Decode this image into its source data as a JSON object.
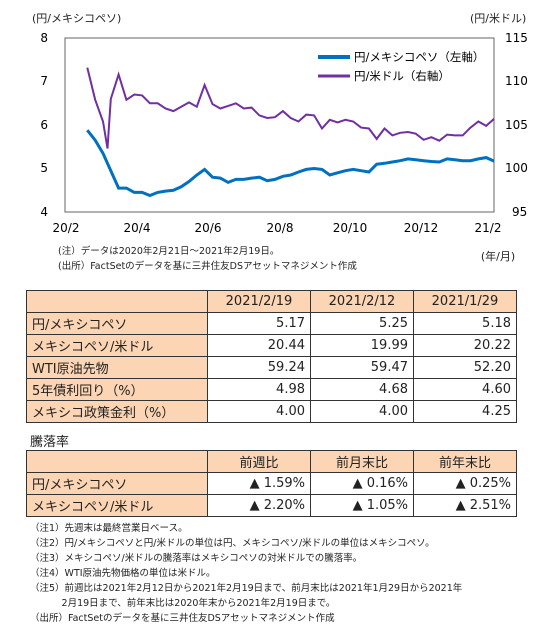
{
  "chart_data": {
    "type": "line",
    "left_axis_unit": "(円/メキシコペソ)",
    "right_axis_unit": "(円/米ドル)",
    "x_unit": "(年/月)",
    "x_ticks": [
      "20/2",
      "20/4",
      "20/6",
      "20/8",
      "20/10",
      "20/12",
      "21/2"
    ],
    "y_left_ticks": [
      "4",
      "5",
      "6",
      "7",
      "8"
    ],
    "y_right_ticks": [
      "95",
      "100",
      "105",
      "110",
      "115"
    ],
    "ylim_left": [
      4,
      8
    ],
    "ylim_right": [
      95,
      115
    ],
    "legend_position": "top-right",
    "series": [
      {
        "name": "円/メキシコペソ（左軸）",
        "axis": "left",
        "color": "#0070c0",
        "points": [
          [
            "2020-02-21",
            5.88
          ],
          [
            "2020-02-28",
            5.65
          ],
          [
            "2020-03-06",
            5.35
          ],
          [
            "2020-03-13",
            4.95
          ],
          [
            "2020-03-20",
            4.55
          ],
          [
            "2020-03-27",
            4.55
          ],
          [
            "2020-04-03",
            4.45
          ],
          [
            "2020-04-10",
            4.45
          ],
          [
            "2020-04-17",
            4.38
          ],
          [
            "2020-04-24",
            4.45
          ],
          [
            "2020-05-01",
            4.48
          ],
          [
            "2020-05-08",
            4.5
          ],
          [
            "2020-05-15",
            4.58
          ],
          [
            "2020-05-22",
            4.7
          ],
          [
            "2020-05-29",
            4.85
          ],
          [
            "2020-06-05",
            4.98
          ],
          [
            "2020-06-12",
            4.8
          ],
          [
            "2020-06-19",
            4.78
          ],
          [
            "2020-06-26",
            4.68
          ],
          [
            "2020-07-03",
            4.75
          ],
          [
            "2020-07-10",
            4.75
          ],
          [
            "2020-07-17",
            4.78
          ],
          [
            "2020-07-24",
            4.8
          ],
          [
            "2020-07-31",
            4.72
          ],
          [
            "2020-08-07",
            4.75
          ],
          [
            "2020-08-14",
            4.82
          ],
          [
            "2020-08-21",
            4.85
          ],
          [
            "2020-08-28",
            4.92
          ],
          [
            "2020-09-04",
            4.98
          ],
          [
            "2020-09-11",
            5.0
          ],
          [
            "2020-09-18",
            4.98
          ],
          [
            "2020-09-25",
            4.85
          ],
          [
            "2020-10-02",
            4.9
          ],
          [
            "2020-10-09",
            4.95
          ],
          [
            "2020-10-16",
            4.98
          ],
          [
            "2020-10-23",
            4.95
          ],
          [
            "2020-10-30",
            4.92
          ],
          [
            "2020-11-06",
            5.1
          ],
          [
            "2020-11-13",
            5.12
          ],
          [
            "2020-11-20",
            5.15
          ],
          [
            "2020-11-27",
            5.18
          ],
          [
            "2020-12-04",
            5.22
          ],
          [
            "2020-12-11",
            5.2
          ],
          [
            "2020-12-18",
            5.18
          ],
          [
            "2020-12-25",
            5.16
          ],
          [
            "2021-01-01",
            5.15
          ],
          [
            "2021-01-08",
            5.22
          ],
          [
            "2021-01-15",
            5.2
          ],
          [
            "2021-01-22",
            5.18
          ],
          [
            "2021-01-29",
            5.18
          ],
          [
            "2021-02-05",
            5.22
          ],
          [
            "2021-02-12",
            5.25
          ],
          [
            "2021-02-19",
            5.17
          ]
        ]
      },
      {
        "name": "円/米ドル（右軸）",
        "axis": "right",
        "color": "#7030a0",
        "points": [
          [
            "2020-02-21",
            111.6
          ],
          [
            "2020-02-28",
            107.9
          ],
          [
            "2020-03-06",
            105.4
          ],
          [
            "2020-03-10",
            102.3
          ],
          [
            "2020-03-13",
            108.0
          ],
          [
            "2020-03-20",
            110.8
          ],
          [
            "2020-03-27",
            107.9
          ],
          [
            "2020-04-03",
            108.5
          ],
          [
            "2020-04-10",
            108.4
          ],
          [
            "2020-04-17",
            107.5
          ],
          [
            "2020-04-24",
            107.5
          ],
          [
            "2020-05-01",
            106.9
          ],
          [
            "2020-05-08",
            106.6
          ],
          [
            "2020-05-15",
            107.1
          ],
          [
            "2020-05-22",
            107.6
          ],
          [
            "2020-05-29",
            107.1
          ],
          [
            "2020-06-05",
            109.6
          ],
          [
            "2020-06-12",
            107.4
          ],
          [
            "2020-06-19",
            106.9
          ],
          [
            "2020-06-26",
            107.2
          ],
          [
            "2020-07-03",
            107.5
          ],
          [
            "2020-07-10",
            106.9
          ],
          [
            "2020-07-17",
            107.0
          ],
          [
            "2020-07-24",
            106.1
          ],
          [
            "2020-07-31",
            105.8
          ],
          [
            "2020-08-07",
            105.9
          ],
          [
            "2020-08-14",
            106.6
          ],
          [
            "2020-08-21",
            105.8
          ],
          [
            "2020-08-28",
            105.4
          ],
          [
            "2020-09-04",
            106.2
          ],
          [
            "2020-09-11",
            106.1
          ],
          [
            "2020-09-18",
            104.6
          ],
          [
            "2020-09-25",
            105.6
          ],
          [
            "2020-10-02",
            105.3
          ],
          [
            "2020-10-09",
            105.6
          ],
          [
            "2020-10-16",
            105.4
          ],
          [
            "2020-10-23",
            104.7
          ],
          [
            "2020-10-30",
            104.6
          ],
          [
            "2020-11-06",
            103.4
          ],
          [
            "2020-11-13",
            104.6
          ],
          [
            "2020-11-20",
            103.8
          ],
          [
            "2020-11-27",
            104.1
          ],
          [
            "2020-12-04",
            104.2
          ],
          [
            "2020-12-11",
            104.0
          ],
          [
            "2020-12-18",
            103.3
          ],
          [
            "2020-12-25",
            103.6
          ],
          [
            "2021-01-01",
            103.2
          ],
          [
            "2021-01-08",
            103.9
          ],
          [
            "2021-01-15",
            103.8
          ],
          [
            "2021-01-22",
            103.8
          ],
          [
            "2021-01-29",
            104.7
          ],
          [
            "2021-02-05",
            105.4
          ],
          [
            "2021-02-12",
            104.9
          ],
          [
            "2021-02-19",
            105.7
          ]
        ]
      }
    ]
  },
  "chart_notes": {
    "note1": "(注）データは2020年2月21日～2021年2月19日。",
    "source": "(出所）FactSetのデータを基に三井住友DSアセットマネジメント作成"
  },
  "table1": {
    "headers": [
      "2021/2/19",
      "2021/2/12",
      "2021/1/29"
    ],
    "rows": [
      {
        "label": "円/メキシコペソ",
        "values": [
          "5.17",
          "5.25",
          "5.18"
        ]
      },
      {
        "label": "メキシコペソ/米ドル",
        "values": [
          "20.44",
          "19.99",
          "20.22"
        ]
      },
      {
        "label": "WTI原油先物",
        "values": [
          "59.24",
          "59.47",
          "52.20"
        ]
      },
      {
        "label": "5年債利回り（%）",
        "values": [
          "4.98",
          "4.68",
          "4.60"
        ]
      },
      {
        "label": "メキシコ政策金利（%）",
        "values": [
          "4.00",
          "4.00",
          "4.25"
        ]
      }
    ]
  },
  "table2": {
    "title": "騰落率",
    "headers": [
      "前週比",
      "前月末比",
      "前年末比"
    ],
    "rows": [
      {
        "label": "円/メキシコペソ",
        "values": [
          "▲ 1.59%",
          "▲ 0.16%",
          "▲ 0.25%"
        ]
      },
      {
        "label": "メキシコペソ/米ドル",
        "values": [
          "▲ 2.20%",
          "▲ 1.05%",
          "▲ 2.51%"
        ]
      }
    ]
  },
  "footnotes": [
    "（注1）先週末は最終営業日ベース。",
    "（注2）円/メキシコペソと円/米ドルの単位は円、メキシコペソ/米ドルの単位はメキシコペソ。",
    "（注3）メキシコペソ/米ドルの騰落率はメキシコペソの対米ドルでの騰落率。",
    "（注4）WTI原油先物価格の単位は米ドル。",
    "（注5）前週比は2021年2月12日から2021年2月19日まで、前月末比は2021年1月29日から2021年",
    "　　　 2月19日まで、前年末比は2020年末から2021年2月19日まで。",
    "（出所）FactSetのデータを基に三井住友DSアセットマネジメント作成"
  ]
}
